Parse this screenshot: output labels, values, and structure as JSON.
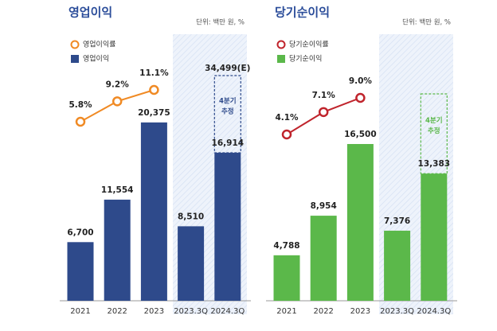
{
  "chart_data": [
    {
      "type": "bar",
      "title": "영업이익",
      "unit_note": "단위: 백만 원, %",
      "categories": [
        "2021",
        "2022",
        "2023",
        "2023.3Q",
        "2024.3Q"
      ],
      "series": [
        {
          "name": "영업이익률",
          "type": "line",
          "color": "#f08a24",
          "values": [
            5.8,
            9.2,
            11.1,
            null,
            null
          ],
          "value_labels": [
            "5.8%",
            "9.2%",
            "11.1%",
            null,
            null
          ]
        },
        {
          "name": "영업이익",
          "type": "bar",
          "color": "#2e4a8b",
          "values": [
            6700,
            11554,
            20375,
            8510,
            16914
          ],
          "value_labels": [
            "6,700",
            "11,554",
            "20,375",
            "8,510",
            "16,914"
          ]
        }
      ],
      "estimate": {
        "value": 34499,
        "label": "34,499(E)",
        "note": [
          "4분기",
          "추정"
        ]
      }
    },
    {
      "type": "bar",
      "title": "당기순이익",
      "unit_note": "단위: 백만 원, %",
      "categories": [
        "2021",
        "2022",
        "2023",
        "2023.3Q",
        "2024.3Q"
      ],
      "series": [
        {
          "name": "당기순이익률",
          "type": "line",
          "color": "#c0242c",
          "values": [
            4.1,
            7.1,
            9.0,
            null,
            null
          ],
          "value_labels": [
            "4.1%",
            "7.1%",
            "9.0%",
            null,
            null
          ]
        },
        {
          "name": "당기순이익",
          "type": "bar",
          "color": "#5bb84a",
          "values": [
            4788,
            8954,
            16500,
            7376,
            13383
          ],
          "value_labels": [
            "4,788",
            "8,954",
            "16,500",
            "7,376",
            "13,383"
          ]
        }
      ],
      "estimate": {
        "note": [
          "4분기",
          "추정"
        ]
      }
    }
  ]
}
